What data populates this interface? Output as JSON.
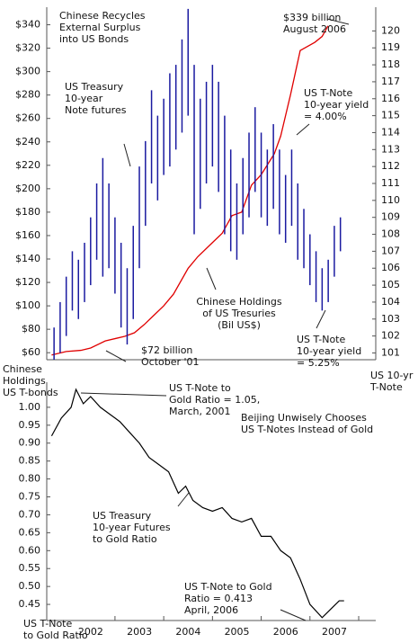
{
  "chart_data": [
    {
      "type": "combo",
      "title": [
        "Chinese Recycles",
        "External Surplus",
        "into US Bonds"
      ],
      "ylabel": [
        "Chinese",
        "Holdings",
        "US T-bonds"
      ],
      "y2label": [
        "US 10-yr",
        "T-Note"
      ],
      "xlim": [
        2000.6,
        2007.35
      ],
      "ylim": [
        54,
        355
      ],
      "yticks": [
        {
          "value": 60,
          "label": "$60"
        },
        {
          "value": 80,
          "label": "$80"
        },
        {
          "value": 100,
          "label": "$100"
        },
        {
          "value": 120,
          "label": "$120"
        },
        {
          "value": 140,
          "label": "$140"
        },
        {
          "value": 160,
          "label": "$160"
        },
        {
          "value": 180,
          "label": "$180"
        },
        {
          "value": 200,
          "label": "$200"
        },
        {
          "value": 220,
          "label": "$220"
        },
        {
          "value": 240,
          "label": "$240"
        },
        {
          "value": 260,
          "label": "$260"
        },
        {
          "value": 280,
          "label": "$280"
        },
        {
          "value": 300,
          "label": "$300"
        },
        {
          "value": 320,
          "label": "$320"
        },
        {
          "value": 340,
          "label": "$340"
        }
      ],
      "y2lim": [
        100.6,
        121.4
      ],
      "y2ticks": [
        101,
        102,
        103,
        104,
        105,
        106,
        107,
        108,
        109,
        110,
        111,
        112,
        113,
        114,
        115,
        116,
        117,
        118,
        119,
        120
      ],
      "series": [
        {
          "name": [
            "Chinese Holdings",
            "of US Tresuries",
            "(Bil US$)"
          ],
          "type": "line",
          "color": "#e00000",
          "x": [
            2000.7,
            2001.0,
            2001.3,
            2001.5,
            2001.8,
            2002.0,
            2002.2,
            2002.4,
            2002.6,
            2002.8,
            2003.0,
            2003.2,
            2003.5,
            2003.7,
            2004.0,
            2004.2,
            2004.4,
            2004.6,
            2004.8,
            2005.0,
            2005.27,
            2005.4,
            2005.6,
            2005.8,
            2006.1,
            2006.25,
            2006.37
          ],
          "values": [
            58,
            61,
            62,
            64,
            70,
            72,
            74,
            77,
            84,
            92,
            100,
            110,
            132,
            142,
            154,
            162,
            177,
            180,
            203,
            212,
            230,
            245,
            280,
            318,
            325,
            330,
            339
          ]
        },
        {
          "name": [
            "US Treasury",
            "10-year",
            "Note futures"
          ],
          "type": "hilo",
          "axis": "y2",
          "color": "#1a1aa0",
          "x": [
            2000.75,
            2000.875,
            2001.0,
            2001.125,
            2001.25,
            2001.375,
            2001.5,
            2001.625,
            2001.75,
            2001.875,
            2002.0,
            2002.125,
            2002.25,
            2002.375,
            2002.5,
            2002.625,
            2002.75,
            2002.875,
            2003.0,
            2003.125,
            2003.25,
            2003.375,
            2003.5,
            2003.625,
            2003.75,
            2003.875,
            2004.0,
            2004.125,
            2004.25,
            2004.375,
            2004.5,
            2004.625,
            2004.75,
            2004.875,
            2005.0,
            2005.125,
            2005.25,
            2005.375,
            2005.5,
            2005.625,
            2005.75,
            2005.875,
            2006.0,
            2006.125,
            2006.25,
            2006.375,
            2006.5,
            2006.625
          ],
          "high": [
            102.5,
            104,
            105.5,
            107,
            106.5,
            107.5,
            109,
            111,
            112.5,
            111,
            109,
            107.5,
            106,
            108.5,
            112,
            113.5,
            116.5,
            115,
            116,
            117.5,
            118,
            119.5,
            121.3,
            118,
            116,
            117,
            118,
            117,
            115,
            113,
            111,
            112.5,
            114,
            115.5,
            114,
            113,
            114.5,
            113,
            111.5,
            113,
            111,
            109.5,
            108,
            107,
            106,
            106.5,
            108.5,
            109
          ],
          "low": [
            100.6,
            101,
            102,
            103.5,
            103,
            104,
            105,
            106.5,
            105.5,
            106,
            104.5,
            102.5,
            101.5,
            103,
            106,
            108.5,
            111,
            110,
            111.5,
            112,
            113,
            114,
            115,
            108,
            109.5,
            111,
            112,
            110.5,
            108,
            107,
            106.5,
            108,
            109,
            110.5,
            109,
            108.5,
            109.5,
            108,
            107.5,
            108.5,
            106.5,
            106,
            105,
            104,
            103.5,
            104,
            105.5,
            107
          ]
        }
      ],
      "annotations": [
        {
          "lines": [
            "$339 billion",
            "August 2006"
          ]
        },
        {
          "lines": [
            "US T-Note",
            "10-year yield",
            "= 4.00%"
          ]
        },
        {
          "lines": [
            "US T-Note",
            "10-year yield",
            "= 5.25%"
          ]
        },
        {
          "lines": [
            "$72 billion",
            "October '01"
          ]
        }
      ]
    },
    {
      "type": "line",
      "title": [
        "Beijing Unwisely Chooses",
        "US T-Notes Instead of Gold"
      ],
      "ylabel": [
        "US T-Note",
        "to Gold Ratio"
      ],
      "xlim": [
        2000.6,
        2007.35
      ],
      "xticks": [
        2002,
        2003,
        2004,
        2005,
        2006,
        2007
      ],
      "ylim": [
        0.405,
        1.07
      ],
      "yticks": [
        {
          "value": 1.0,
          "label": "1.00"
        },
        {
          "value": 0.95,
          "label": "0.95"
        },
        {
          "value": 0.9,
          "label": "0.90"
        },
        {
          "value": 0.85,
          "label": "0.85"
        },
        {
          "value": 0.8,
          "label": "0.80"
        },
        {
          "value": 0.75,
          "label": "0.75"
        },
        {
          "value": 0.7,
          "label": "0.70"
        },
        {
          "value": 0.65,
          "label": "0.65"
        },
        {
          "value": 0.6,
          "label": "0.60"
        },
        {
          "value": 0.55,
          "label": "0.55"
        },
        {
          "value": 0.5,
          "label": "0.50"
        },
        {
          "value": 0.45,
          "label": "0.45"
        }
      ],
      "series": [
        {
          "name": [
            "US Treasury",
            "10-year Futures",
            "to Gold Ratio"
          ],
          "color": "#000000",
          "x": [
            2000.7,
            2000.9,
            2001.1,
            2001.2,
            2001.35,
            2001.5,
            2001.7,
            2001.9,
            2002.1,
            2002.3,
            2002.5,
            2002.7,
            2002.9,
            2003.1,
            2003.3,
            2003.45,
            2003.6,
            2003.8,
            2004.0,
            2004.2,
            2004.4,
            2004.6,
            2004.8,
            2005.0,
            2005.2,
            2005.4,
            2005.6,
            2005.8,
            2006.0,
            2006.25,
            2006.45,
            2006.6,
            2006.7
          ],
          "values": [
            0.92,
            0.97,
            1.0,
            1.05,
            1.01,
            1.03,
            1.0,
            0.98,
            0.96,
            0.93,
            0.9,
            0.86,
            0.84,
            0.82,
            0.76,
            0.78,
            0.74,
            0.72,
            0.71,
            0.72,
            0.69,
            0.68,
            0.69,
            0.64,
            0.64,
            0.6,
            0.58,
            0.52,
            0.45,
            0.413,
            0.44,
            0.46,
            0.46
          ]
        }
      ],
      "annotations": [
        {
          "lines": [
            "US T-Note to",
            "Gold Ratio = 1.05,",
            "March, 2001"
          ]
        },
        {
          "lines": [
            "US T-Note to Gold",
            "Ratio = 0.413",
            "April, 2006"
          ]
        }
      ]
    }
  ]
}
